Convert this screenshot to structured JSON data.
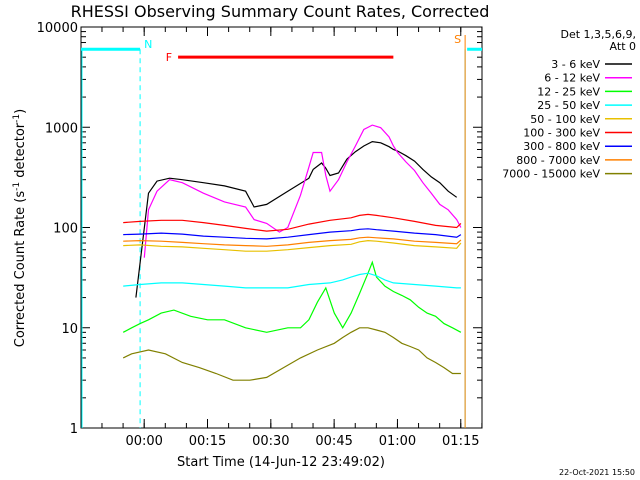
{
  "chart_data": {
    "type": "line",
    "title": "RHESSI Observing Summary Count Rates, Corrected",
    "xlabel": "Start Time (14-Jun-12 23:49:02)",
    "ylabel_main": "Corrected Count Rate (s",
    "ylabel_sup1": "-1",
    "ylabel_mid": " detector",
    "ylabel_sup2": "-1",
    "ylabel_end": ")",
    "x_unit": "minutes after 2012-06-14 23:49:02",
    "xlim": [
      -4,
      91
    ],
    "ylim": [
      1,
      10000
    ],
    "yscale": "log",
    "x_ticks": [
      {
        "value": 10.97,
        "label": "00:00"
      },
      {
        "value": 25.97,
        "label": "00:15"
      },
      {
        "value": 40.97,
        "label": "00:30"
      },
      {
        "value": 55.97,
        "label": "00:45"
      },
      {
        "value": 70.97,
        "label": "01:00"
      },
      {
        "value": 85.97,
        "label": "01:15"
      }
    ],
    "y_ticks": [
      {
        "value": 1,
        "label": "1"
      },
      {
        "value": 10,
        "label": "10"
      },
      {
        "value": 100,
        "label": "100"
      },
      {
        "value": 1000,
        "label": "1000"
      },
      {
        "value": 10000,
        "label": "10000"
      }
    ],
    "legend_header": [
      "Det 1,3,5,6,9,",
      "Att 0"
    ],
    "legend_position": "outside-right",
    "series": [
      {
        "name": "3 - 6 keV",
        "color": "#000000",
        "x": [
          9,
          12,
          14,
          17,
          20,
          25,
          30,
          35,
          37,
          40,
          45,
          50,
          51,
          53,
          54,
          55,
          57,
          59,
          61,
          63,
          65,
          67,
          69,
          70,
          71,
          73,
          75,
          77,
          79,
          81,
          83,
          85
        ],
        "y": [
          20,
          220,
          290,
          310,
          300,
          280,
          260,
          230,
          160,
          170,
          230,
          310,
          380,
          440,
          390,
          330,
          350,
          480,
          570,
          650,
          720,
          700,
          640,
          600,
          580,
          520,
          460,
          380,
          320,
          280,
          230,
          200
        ]
      },
      {
        "name": "6 - 12 keV",
        "color": "#ff00ff",
        "x": [
          11,
          12,
          14,
          17,
          20,
          25,
          30,
          35,
          37,
          40,
          43,
          45,
          48,
          50,
          51,
          53,
          54,
          55,
          57,
          59,
          61,
          63,
          65,
          67,
          69,
          70,
          71,
          73,
          75,
          77,
          79,
          81,
          83,
          85,
          86
        ],
        "y": [
          50,
          150,
          230,
          300,
          280,
          220,
          180,
          160,
          120,
          110,
          90,
          100,
          210,
          400,
          560,
          560,
          330,
          230,
          300,
          450,
          650,
          950,
          1050,
          990,
          800,
          650,
          560,
          450,
          370,
          280,
          220,
          170,
          150,
          120,
          100
        ]
      },
      {
        "name": "12 - 25 keV",
        "color": "#00ff00",
        "x": [
          6,
          8,
          10,
          12,
          15,
          18,
          22,
          26,
          30,
          35,
          40,
          45,
          48,
          50,
          52,
          54,
          56,
          58,
          60,
          62,
          64,
          65,
          66,
          68,
          70,
          72,
          74,
          76,
          78,
          80,
          82,
          84,
          86
        ],
        "y": [
          9,
          10,
          11,
          12,
          14,
          15,
          13,
          12,
          12,
          10,
          9,
          10,
          10,
          12,
          18,
          25,
          14,
          10,
          14,
          22,
          35,
          45,
          32,
          26,
          23,
          21,
          19,
          16,
          14,
          13,
          11,
          10,
          9
        ]
      },
      {
        "name": "25 - 50 keV",
        "color": "#00ffff",
        "x": [
          6,
          10,
          15,
          20,
          25,
          30,
          35,
          40,
          45,
          50,
          55,
          58,
          60,
          62,
          64,
          66,
          68,
          70,
          75,
          80,
          85,
          86
        ],
        "y": [
          26,
          27,
          28,
          28,
          27,
          26,
          25,
          25,
          25,
          27,
          28,
          30,
          32,
          34,
          35,
          33,
          30,
          28,
          27,
          26,
          25,
          25
        ]
      },
      {
        "name": "50 - 100 keV",
        "color": "#e8c000",
        "x": [
          6,
          10,
          15,
          20,
          25,
          30,
          35,
          40,
          45,
          50,
          55,
          60,
          62,
          64,
          66,
          70,
          75,
          80,
          85,
          86
        ],
        "y": [
          66,
          67,
          65,
          64,
          62,
          60,
          58,
          58,
          60,
          63,
          66,
          68,
          72,
          74,
          73,
          70,
          66,
          64,
          62,
          70
        ]
      },
      {
        "name": "100 - 300 keV",
        "color": "#ff0000",
        "x": [
          6,
          10,
          15,
          20,
          25,
          30,
          35,
          40,
          45,
          50,
          55,
          60,
          62,
          64,
          66,
          70,
          75,
          80,
          85,
          86
        ],
        "y": [
          112,
          115,
          118,
          118,
          112,
          105,
          98,
          92,
          96,
          108,
          118,
          125,
          132,
          135,
          132,
          125,
          115,
          105,
          100,
          110
        ]
      },
      {
        "name": "300 - 800 keV",
        "color": "#0000ff",
        "x": [
          6,
          10,
          15,
          20,
          25,
          30,
          35,
          40,
          45,
          50,
          55,
          60,
          62,
          64,
          66,
          70,
          75,
          80,
          85,
          86
        ],
        "y": [
          85,
          86,
          88,
          86,
          82,
          80,
          78,
          77,
          80,
          85,
          90,
          93,
          96,
          97,
          95,
          92,
          88,
          85,
          80,
          85
        ]
      },
      {
        "name": "800 - 7000 keV",
        "color": "#ff8000",
        "x": [
          6,
          10,
          15,
          20,
          25,
          30,
          35,
          40,
          45,
          50,
          55,
          60,
          62,
          64,
          66,
          70,
          75,
          80,
          85,
          86
        ],
        "y": [
          73,
          74,
          73,
          71,
          69,
          67,
          66,
          65,
          67,
          71,
          74,
          76,
          79,
          80,
          79,
          77,
          73,
          71,
          69,
          75
        ]
      },
      {
        "name": "7000 - 15000 keV",
        "color": "#808000",
        "x": [
          6,
          8,
          12,
          16,
          20,
          24,
          28,
          32,
          36,
          40,
          44,
          48,
          52,
          56,
          58,
          60,
          62,
          64,
          66,
          68,
          70,
          72,
          74,
          76,
          78,
          80,
          82,
          84,
          86
        ],
        "y": [
          5,
          5.5,
          6,
          5.5,
          4.5,
          4,
          3.5,
          3,
          3,
          3.2,
          4,
          5,
          6,
          7,
          8,
          9,
          10,
          10,
          9.5,
          9,
          8,
          7,
          6.5,
          6,
          5,
          4.5,
          4,
          3.5,
          3.5
        ]
      }
    ],
    "annotations": {
      "flare": {
        "label": "F",
        "color": "#ff0000",
        "x_start": 19,
        "x_end": 70,
        "y": 5000
      },
      "saa": {
        "label": "S",
        "color": "#ff8000",
        "x": 87
      },
      "night_left": {
        "label": "N",
        "color": "#00ffff",
        "x_end": 10,
        "y": 6000
      },
      "night_right": {
        "label": "",
        "color": "#00ffff",
        "x_start": 87,
        "x_end": 86.5,
        "y": 6000
      }
    },
    "timestamp": "22-Oct-2021 15:50"
  }
}
